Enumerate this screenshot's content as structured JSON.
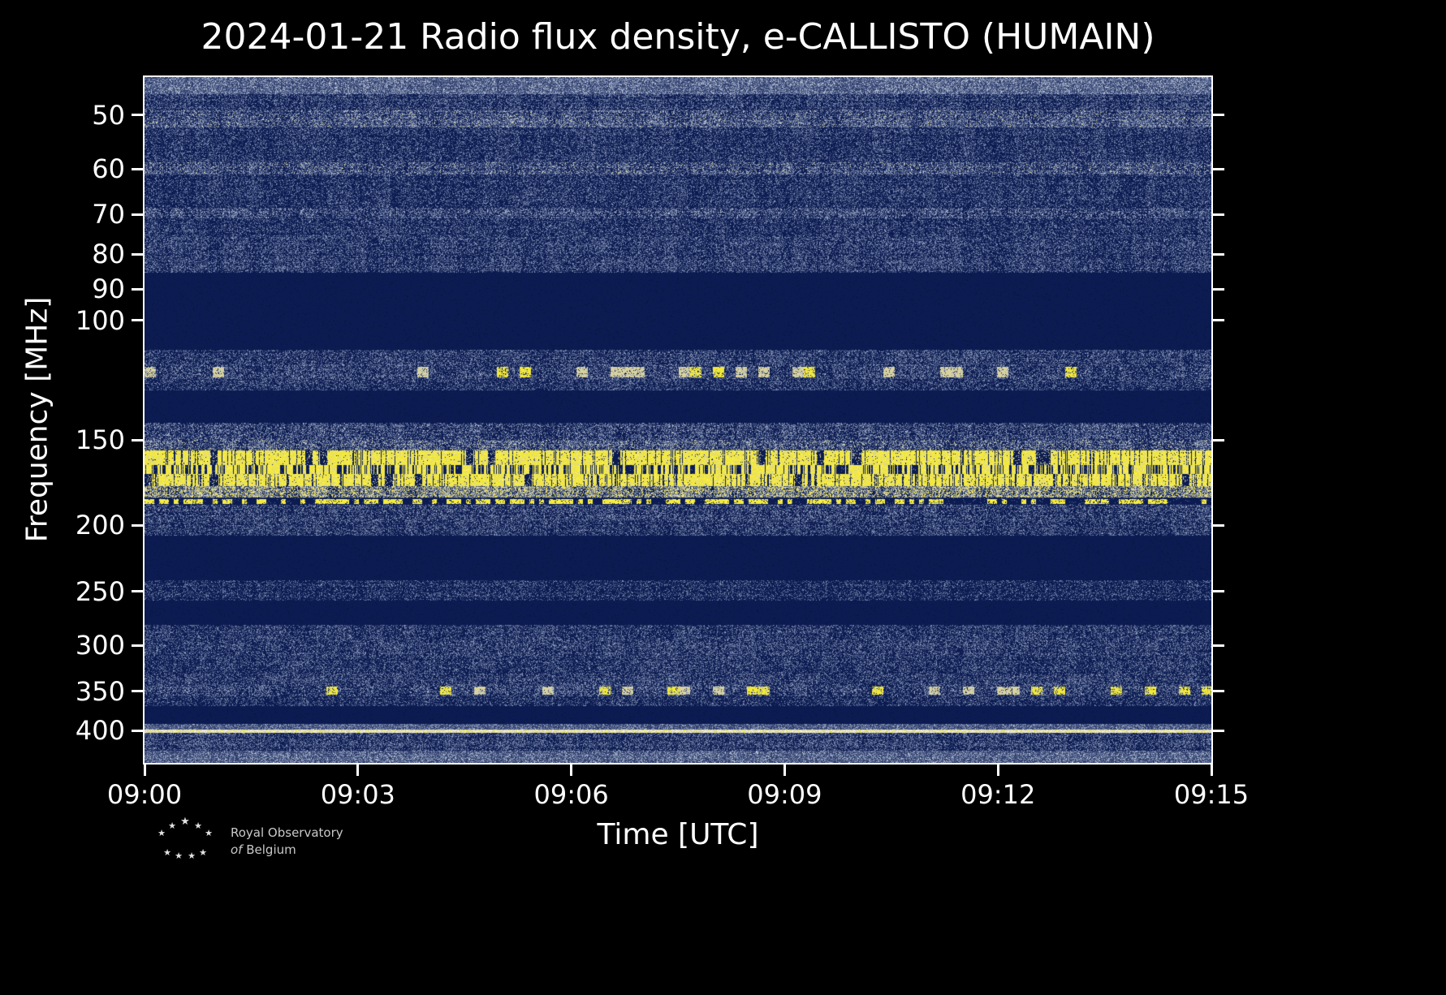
{
  "footer": {
    "org_line1": "Royal Observatory",
    "org_line2_italic": "of",
    "org_line2_rest": "Belgium"
  },
  "chart_data": {
    "type": "heatmap",
    "subtype": "radio-spectrogram",
    "title": "2024-01-21 Radio flux density, e-CALLISTO (HUMAIN)",
    "xlabel": "Time [UTC]",
    "ylabel": "Frequency [MHz]",
    "x_ticks": [
      "09:00",
      "09:03",
      "09:06",
      "09:09",
      "09:12",
      "09:15"
    ],
    "x_range_utc": [
      "09:00",
      "09:15"
    ],
    "y_ticks": [
      50,
      60,
      70,
      80,
      90,
      100,
      150,
      200,
      250,
      300,
      350,
      400
    ],
    "y_scale": "log",
    "y_inverted": true,
    "freq_range_mhz": [
      44.0,
      446.0
    ],
    "grid": false,
    "legend": "none",
    "colors": {
      "navy": "#0c1c52",
      "navy2": "#091640",
      "s1": "#31406e",
      "s2": "#5a6a94",
      "s3": "#8694b4",
      "g": "#c2c8d4",
      "py": "#d8d2a0",
      "y": "#f2e83a",
      "yb": "#fff45e",
      "w": "#f2efdf"
    },
    "bands": [
      {
        "f1": 44.0,
        "f2": 46.6,
        "style": "gray",
        "d": 0.9,
        "b": 0.5
      },
      {
        "f1": 46.6,
        "f2": 49.2,
        "style": "speckle",
        "d": 0.5,
        "b": 0.35
      },
      {
        "f1": 49.2,
        "f2": 52.2,
        "style": "speckle",
        "d": 0.62,
        "b": 0.5,
        "pale": true
      },
      {
        "f1": 52.2,
        "f2": 58.6,
        "style": "speckle",
        "d": 0.42,
        "b": 0.3
      },
      {
        "f1": 58.6,
        "f2": 61.2,
        "style": "speckle",
        "d": 0.66,
        "b": 0.5,
        "pale": true
      },
      {
        "f1": 61.2,
        "f2": 68.4,
        "style": "speckle",
        "d": 0.42,
        "b": 0.3
      },
      {
        "f1": 68.4,
        "f2": 70.8,
        "style": "speckle",
        "d": 0.58,
        "b": 0.45,
        "pale": true
      },
      {
        "f1": 70.8,
        "f2": 75.6,
        "style": "speckle",
        "d": 0.4,
        "b": 0.3
      },
      {
        "f1": 75.6,
        "f2": 85.2,
        "style": "speckle",
        "d": 0.48,
        "b": 0.35
      },
      {
        "f1": 85.2,
        "f2": 110.4,
        "style": "quiet"
      },
      {
        "f1": 110.4,
        "f2": 116.0,
        "style": "speckle",
        "d": 0.5,
        "b": 0.38
      },
      {
        "f1": 116.0,
        "f2": 122.0,
        "style": "blobs",
        "d": 0.5,
        "b": 0.4
      },
      {
        "f1": 122.0,
        "f2": 126.6,
        "style": "speckle",
        "d": 0.42,
        "b": 0.32
      },
      {
        "f1": 126.6,
        "f2": 141.4,
        "style": "quiet"
      },
      {
        "f1": 141.4,
        "f2": 149.8,
        "style": "speckle",
        "d": 0.55,
        "b": 0.45,
        "pale": true
      },
      {
        "f1": 149.8,
        "f2": 155.4,
        "style": "speckle",
        "d": 0.66,
        "b": 0.55,
        "pale": true
      },
      {
        "f1": 155.4,
        "f2": 163.0,
        "style": "bright",
        "gap": 0.1
      },
      {
        "f1": 163.0,
        "f2": 168.2,
        "style": "broken",
        "fill": 0.55
      },
      {
        "f1": 168.2,
        "f2": 175.2,
        "style": "bright",
        "gap": 0.16
      },
      {
        "f1": 175.2,
        "f2": 181.8,
        "style": "paleband",
        "d": 0.7
      },
      {
        "f1": 181.8,
        "f2": 186.8,
        "style": "dotted"
      },
      {
        "f1": 186.8,
        "f2": 196.0,
        "style": "speckle",
        "d": 0.52,
        "b": 0.4
      },
      {
        "f1": 196.0,
        "f2": 207.0,
        "style": "speckle",
        "d": 0.46,
        "b": 0.34
      },
      {
        "f1": 207.0,
        "f2": 240.5,
        "style": "quiet"
      },
      {
        "f1": 240.5,
        "f2": 258.0,
        "style": "speckle",
        "d": 0.34,
        "b": 0.26
      },
      {
        "f1": 258.0,
        "f2": 280.0,
        "style": "quiet"
      },
      {
        "f1": 280.0,
        "f2": 296.0,
        "style": "speckle",
        "d": 0.46,
        "b": 0.32
      },
      {
        "f1": 296.0,
        "f2": 311.0,
        "style": "speckle",
        "d": 0.52,
        "b": 0.36
      },
      {
        "f1": 311.0,
        "f2": 330.0,
        "style": "speckle",
        "d": 0.42,
        "b": 0.3
      },
      {
        "f1": 330.0,
        "f2": 342.0,
        "style": "speckle",
        "d": 0.46,
        "b": 0.34
      },
      {
        "f1": 342.0,
        "f2": 356.0,
        "style": "blobs",
        "d": 0.5,
        "b": 0.4
      },
      {
        "f1": 356.0,
        "f2": 368.0,
        "style": "speckle",
        "d": 0.4,
        "b": 0.3
      },
      {
        "f1": 368.0,
        "f2": 391.5,
        "style": "quiet"
      },
      {
        "f1": 391.5,
        "f2": 399.0,
        "style": "gray",
        "d": 0.75,
        "b": 0.42
      },
      {
        "f1": 399.0,
        "f2": 403.5,
        "style": "line"
      },
      {
        "f1": 403.5,
        "f2": 427.5,
        "style": "speckle",
        "d": 0.5,
        "b": 0.36
      },
      {
        "f1": 427.5,
        "f2": 446.0,
        "style": "gray",
        "d": 0.85,
        "b": 0.48
      }
    ]
  }
}
